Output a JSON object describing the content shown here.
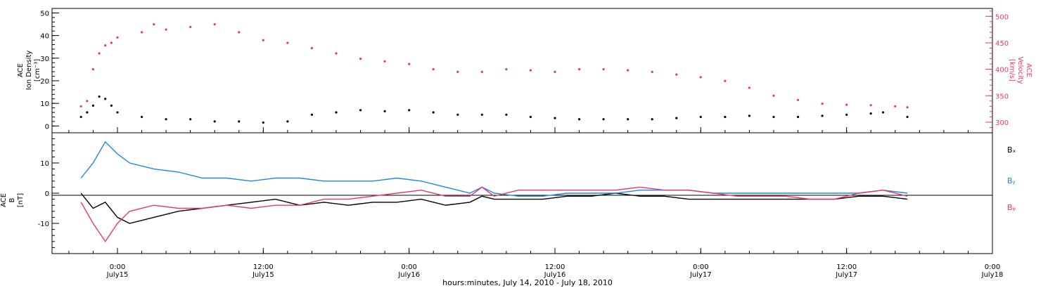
{
  "colors": {
    "black": "#000000",
    "pink": "#e8386a",
    "blue": "#1f86e6"
  },
  "chart_data": [
    {
      "type": "scatter",
      "panel": "top",
      "ylabel_left": [
        "ACE",
        "Ion Density",
        "[cm⁻³]"
      ],
      "ylabel_right": [
        "ACE",
        "Velocity",
        "[km/s]"
      ],
      "ylim_left": [
        -3,
        52
      ],
      "ylim_right": [
        280,
        515
      ],
      "yticks_left": [
        "0",
        "10",
        "20",
        "30",
        "40",
        "50"
      ],
      "yticks_right": [
        "300",
        "350",
        "400",
        "450",
        "500"
      ],
      "series": [
        {
          "axis": "left",
          "color": "#000000",
          "points": [
            [
              -3.0,
              4
            ],
            [
              -2.5,
              6
            ],
            [
              -2.0,
              9
            ],
            [
              -1.5,
              13
            ],
            [
              -1.0,
              12
            ],
            [
              -0.5,
              9
            ],
            [
              0.0,
              6
            ],
            [
              2,
              4
            ],
            [
              4,
              3
            ],
            [
              6,
              3
            ],
            [
              8,
              2
            ],
            [
              10,
              2
            ],
            [
              12,
              1.5
            ],
            [
              14,
              2
            ],
            [
              16,
              5
            ],
            [
              18,
              6
            ],
            [
              20,
              7
            ],
            [
              22,
              6.5
            ],
            [
              24,
              7
            ],
            [
              26,
              6
            ],
            [
              28,
              5
            ],
            [
              30,
              5
            ],
            [
              32,
              5
            ],
            [
              34,
              4
            ],
            [
              36,
              3.5
            ],
            [
              38,
              3
            ],
            [
              40,
              3
            ],
            [
              42,
              3
            ],
            [
              44,
              3
            ],
            [
              46,
              3.5
            ],
            [
              48,
              4
            ],
            [
              50,
              4
            ],
            [
              52,
              4.5
            ],
            [
              54,
              4
            ],
            [
              56,
              4
            ],
            [
              58,
              4.5
            ],
            [
              60,
              5
            ],
            [
              62,
              5.5
            ],
            [
              63,
              6
            ],
            [
              65,
              4
            ]
          ]
        },
        {
          "axis": "right",
          "color": "#e8386a",
          "points": [
            [
              -3.0,
              330
            ],
            [
              -2.5,
              340
            ],
            [
              -2.0,
              400
            ],
            [
              -1.5,
              430
            ],
            [
              -1.0,
              445
            ],
            [
              -0.5,
              450
            ],
            [
              0.0,
              460
            ],
            [
              2,
              470
            ],
            [
              3,
              485
            ],
            [
              4,
              475
            ],
            [
              6,
              480
            ],
            [
              8,
              485
            ],
            [
              10,
              470
            ],
            [
              12,
              455
            ],
            [
              14,
              450
            ],
            [
              16,
              440
            ],
            [
              18,
              430
            ],
            [
              20,
              420
            ],
            [
              22,
              415
            ],
            [
              24,
              410
            ],
            [
              26,
              400
            ],
            [
              28,
              395
            ],
            [
              30,
              395
            ],
            [
              32,
              400
            ],
            [
              34,
              398
            ],
            [
              36,
              395
            ],
            [
              38,
              400
            ],
            [
              40,
              400
            ],
            [
              42,
              398
            ],
            [
              44,
              395
            ],
            [
              46,
              390
            ],
            [
              48,
              385
            ],
            [
              50,
              378
            ],
            [
              52,
              365
            ],
            [
              54,
              350
            ],
            [
              56,
              342
            ],
            [
              58,
              335
            ],
            [
              60,
              333
            ],
            [
              62,
              332
            ],
            [
              64,
              330
            ],
            [
              65,
              328
            ]
          ]
        }
      ]
    },
    {
      "type": "line",
      "panel": "bottom",
      "ylabel": [
        "ACE",
        "B",
        "[nT]"
      ],
      "ylim": [
        -20,
        20
      ],
      "yticks": [
        "-10",
        "0",
        "10"
      ],
      "legend": [
        "Bₓ",
        "Bᵧ",
        "Bᵩ"
      ],
      "series": [
        {
          "name": "Bₓ",
          "color": "#000000",
          "points": [
            [
              -3.0,
              0
            ],
            [
              -2.0,
              -5
            ],
            [
              -1.0,
              -3
            ],
            [
              0.0,
              -8
            ],
            [
              1,
              -10
            ],
            [
              3,
              -8
            ],
            [
              5,
              -6
            ],
            [
              7,
              -5
            ],
            [
              9,
              -4
            ],
            [
              11,
              -3
            ],
            [
              13,
              -2
            ],
            [
              15,
              -4
            ],
            [
              17,
              -3
            ],
            [
              19,
              -4
            ],
            [
              21,
              -3
            ],
            [
              23,
              -3
            ],
            [
              25,
              -2
            ],
            [
              27,
              -4
            ],
            [
              29,
              -3
            ],
            [
              30,
              -1
            ],
            [
              31,
              -2
            ],
            [
              33,
              -2
            ],
            [
              35,
              -2
            ],
            [
              37,
              -1
            ],
            [
              39,
              -1
            ],
            [
              41,
              0
            ],
            [
              43,
              -1
            ],
            [
              45,
              -1
            ],
            [
              47,
              -2
            ],
            [
              49,
              -2
            ],
            [
              51,
              -2
            ],
            [
              53,
              -2
            ],
            [
              55,
              -2
            ],
            [
              57,
              -2
            ],
            [
              59,
              -2
            ],
            [
              61,
              -1
            ],
            [
              63,
              -1
            ],
            [
              65,
              -2
            ]
          ]
        },
        {
          "name": "Bᵧ",
          "color": "#1f86e6",
          "points": [
            [
              -3.0,
              5
            ],
            [
              -2.0,
              10
            ],
            [
              -1.0,
              17
            ],
            [
              0.0,
              13
            ],
            [
              1,
              10
            ],
            [
              3,
              8
            ],
            [
              5,
              7
            ],
            [
              7,
              5
            ],
            [
              9,
              5
            ],
            [
              11,
              4
            ],
            [
              13,
              5
            ],
            [
              15,
              5
            ],
            [
              17,
              4
            ],
            [
              19,
              4
            ],
            [
              21,
              4
            ],
            [
              23,
              5
            ],
            [
              25,
              4
            ],
            [
              27,
              2
            ],
            [
              29,
              0
            ],
            [
              30,
              2
            ],
            [
              31,
              0
            ],
            [
              33,
              -1
            ],
            [
              35,
              -1
            ],
            [
              37,
              0
            ],
            [
              39,
              0
            ],
            [
              41,
              0
            ],
            [
              43,
              1
            ],
            [
              45,
              1
            ],
            [
              47,
              1
            ],
            [
              49,
              0
            ],
            [
              51,
              0
            ],
            [
              53,
              0
            ],
            [
              55,
              0
            ],
            [
              57,
              0
            ],
            [
              59,
              0
            ],
            [
              61,
              0
            ],
            [
              63,
              1
            ],
            [
              65,
              0
            ]
          ]
        },
        {
          "name": "Bᵩ",
          "color": "#e8386a",
          "points": [
            [
              -3.0,
              -3
            ],
            [
              -2.0,
              -10
            ],
            [
              -1.0,
              -16
            ],
            [
              0.0,
              -10
            ],
            [
              1,
              -6
            ],
            [
              3,
              -4
            ],
            [
              5,
              -5
            ],
            [
              7,
              -5
            ],
            [
              9,
              -4
            ],
            [
              11,
              -5
            ],
            [
              13,
              -4
            ],
            [
              15,
              -4
            ],
            [
              17,
              -2
            ],
            [
              19,
              -2
            ],
            [
              21,
              -1
            ],
            [
              23,
              0
            ],
            [
              25,
              1
            ],
            [
              27,
              -1
            ],
            [
              29,
              -1
            ],
            [
              30,
              2
            ],
            [
              31,
              -1
            ],
            [
              33,
              1
            ],
            [
              35,
              1
            ],
            [
              37,
              1
            ],
            [
              39,
              1
            ],
            [
              41,
              1
            ],
            [
              43,
              2
            ],
            [
              45,
              1
            ],
            [
              47,
              1
            ],
            [
              49,
              0
            ],
            [
              51,
              -1
            ],
            [
              53,
              -1
            ],
            [
              55,
              -1
            ],
            [
              57,
              -2
            ],
            [
              59,
              -2
            ],
            [
              61,
              0
            ],
            [
              63,
              1
            ],
            [
              65,
              -1
            ]
          ]
        }
      ]
    }
  ],
  "xaxis": {
    "ticks": [
      {
        "hour": 0,
        "time": "0:00",
        "day": "July15"
      },
      {
        "hour": 12,
        "time": "12:00",
        "day": "July15"
      },
      {
        "hour": 24,
        "time": "0:00",
        "day": "July16"
      },
      {
        "hour": 36,
        "time": "12:00",
        "day": "July16"
      },
      {
        "hour": 48,
        "time": "0:00",
        "day": "July17"
      },
      {
        "hour": 60,
        "time": "12:00",
        "day": "July17"
      },
      {
        "hour": 72,
        "time": "0:00",
        "day": "July18"
      }
    ],
    "label": "hours:minutes, July 14, 2010 - July 18, 2010"
  }
}
